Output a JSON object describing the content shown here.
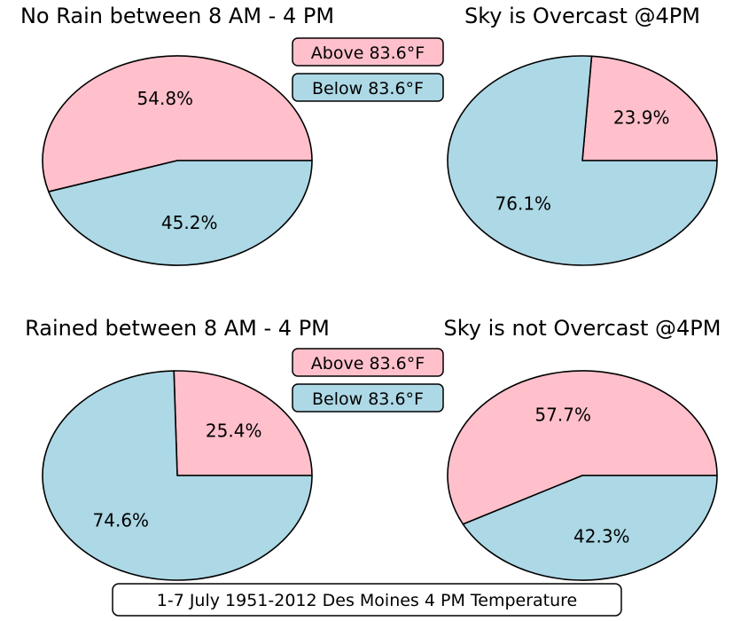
{
  "colors": {
    "above": "#ffc0cb",
    "below": "#add8e6"
  },
  "legend": {
    "above_label": "Above 83.6°F",
    "below_label": "Below 83.6°F"
  },
  "footer": {
    "text": "1-7 July 1951-2012 Des Moines 4 PM Temperature"
  },
  "chart_data": [
    {
      "type": "pie",
      "title": "No Rain between 8 AM - 4 PM",
      "labels": [
        "Above 83.6°F",
        "Below 83.6°F"
      ],
      "values": [
        54.8,
        45.2
      ],
      "value_labels": [
        "54.8%",
        "45.2%"
      ]
    },
    {
      "type": "pie",
      "title": "Sky is Overcast @4PM",
      "labels": [
        "Above 83.6°F",
        "Below 83.6°F"
      ],
      "values": [
        23.9,
        76.1
      ],
      "value_labels": [
        "23.9%",
        "76.1%"
      ]
    },
    {
      "type": "pie",
      "title": "Rained between 8 AM - 4 PM",
      "labels": [
        "Above 83.6°F",
        "Below 83.6°F"
      ],
      "values": [
        25.4,
        74.6
      ],
      "value_labels": [
        "25.4%",
        "74.6%"
      ]
    },
    {
      "type": "pie",
      "title": "Sky is not Overcast @4PM",
      "labels": [
        "Above 83.6°F",
        "Below 83.6°F"
      ],
      "values": [
        57.7,
        42.3
      ],
      "value_labels": [
        "57.7%",
        "42.3%"
      ]
    }
  ]
}
